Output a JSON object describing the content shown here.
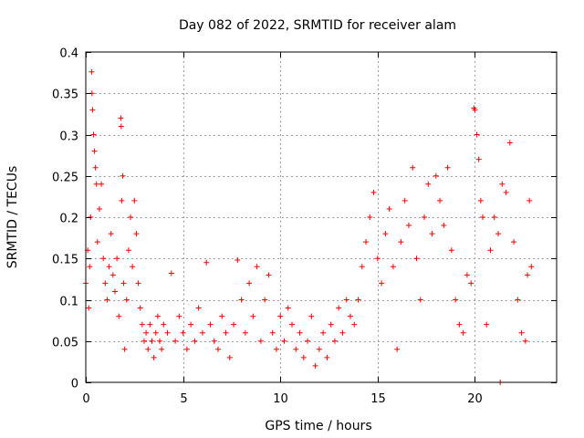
{
  "chart_data": {
    "type": "scatter",
    "title": "Day 082 of 2022, SRMTID for receiver alam",
    "xlabel": "GPS time / hours",
    "ylabel": "SRMTID / TECUs",
    "xlim": [
      0,
      24.2
    ],
    "ylim": [
      0,
      0.4
    ],
    "xticks": [
      0,
      5,
      10,
      15,
      20
    ],
    "xtick_labels": [
      "0",
      "5",
      "10",
      "15",
      "20"
    ],
    "yticks": [
      0,
      0.05,
      0.1,
      0.15,
      0.2,
      0.25,
      0.3,
      0.35,
      0.4
    ],
    "ytick_labels": [
      "0",
      "0.05",
      "0.1",
      "0.15",
      "0.2",
      "0.25",
      "0.3",
      "0.35",
      "0.4"
    ],
    "grid": true,
    "marker": "plus",
    "color": "#ff0000",
    "series": [
      {
        "name": "SRMTID",
        "points": [
          [
            0.0,
            0.12
          ],
          [
            0.1,
            0.16
          ],
          [
            0.15,
            0.09
          ],
          [
            0.2,
            0.14
          ],
          [
            0.25,
            0.2
          ],
          [
            0.3,
            0.376
          ],
          [
            0.32,
            0.35
          ],
          [
            0.35,
            0.33
          ],
          [
            0.4,
            0.3
          ],
          [
            0.45,
            0.28
          ],
          [
            0.5,
            0.26
          ],
          [
            0.55,
            0.24
          ],
          [
            0.6,
            0.17
          ],
          [
            0.7,
            0.21
          ],
          [
            0.8,
            0.24
          ],
          [
            0.9,
            0.15
          ],
          [
            1.0,
            0.12
          ],
          [
            1.1,
            0.1
          ],
          [
            1.2,
            0.14
          ],
          [
            1.3,
            0.18
          ],
          [
            1.4,
            0.13
          ],
          [
            1.5,
            0.11
          ],
          [
            1.6,
            0.15
          ],
          [
            1.7,
            0.08
          ],
          [
            1.8,
            0.32
          ],
          [
            1.82,
            0.31
          ],
          [
            1.85,
            0.22
          ],
          [
            1.9,
            0.25
          ],
          [
            1.95,
            0.12
          ],
          [
            2.0,
            0.04
          ],
          [
            2.1,
            0.1
          ],
          [
            2.2,
            0.16
          ],
          [
            2.3,
            0.2
          ],
          [
            2.4,
            0.14
          ],
          [
            2.5,
            0.22
          ],
          [
            2.6,
            0.18
          ],
          [
            2.7,
            0.12
          ],
          [
            2.8,
            0.09
          ],
          [
            2.9,
            0.07
          ],
          [
            3.0,
            0.05
          ],
          [
            3.1,
            0.06
          ],
          [
            3.2,
            0.04
          ],
          [
            3.3,
            0.07
          ],
          [
            3.4,
            0.05
          ],
          [
            3.5,
            0.03
          ],
          [
            3.6,
            0.06
          ],
          [
            3.7,
            0.08
          ],
          [
            3.8,
            0.05
          ],
          [
            3.9,
            0.04
          ],
          [
            4.0,
            0.07
          ],
          [
            4.2,
            0.06
          ],
          [
            4.4,
            0.132
          ],
          [
            4.6,
            0.05
          ],
          [
            4.8,
            0.08
          ],
          [
            5.0,
            0.06
          ],
          [
            5.2,
            0.04
          ],
          [
            5.4,
            0.07
          ],
          [
            5.6,
            0.05
          ],
          [
            5.8,
            0.09
          ],
          [
            6.0,
            0.06
          ],
          [
            6.2,
            0.145
          ],
          [
            6.4,
            0.07
          ],
          [
            6.6,
            0.05
          ],
          [
            6.8,
            0.04
          ],
          [
            7.0,
            0.08
          ],
          [
            7.2,
            0.06
          ],
          [
            7.4,
            0.03
          ],
          [
            7.6,
            0.07
          ],
          [
            7.8,
            0.148
          ],
          [
            8.0,
            0.1
          ],
          [
            8.2,
            0.06
          ],
          [
            8.4,
            0.12
          ],
          [
            8.6,
            0.08
          ],
          [
            8.8,
            0.14
          ],
          [
            9.0,
            0.05
          ],
          [
            9.2,
            0.1
          ],
          [
            9.4,
            0.13
          ],
          [
            9.6,
            0.06
          ],
          [
            9.8,
            0.04
          ],
          [
            10.0,
            0.08
          ],
          [
            10.2,
            0.05
          ],
          [
            10.4,
            0.09
          ],
          [
            10.6,
            0.07
          ],
          [
            10.8,
            0.04
          ],
          [
            11.0,
            0.06
          ],
          [
            11.2,
            0.03
          ],
          [
            11.4,
            0.05
          ],
          [
            11.6,
            0.08
          ],
          [
            11.8,
            0.02
          ],
          [
            12.0,
            0.04
          ],
          [
            12.2,
            0.06
          ],
          [
            12.4,
            0.03
          ],
          [
            12.6,
            0.07
          ],
          [
            12.8,
            0.05
          ],
          [
            13.0,
            0.09
          ],
          [
            13.2,
            0.06
          ],
          [
            13.4,
            0.1
          ],
          [
            13.6,
            0.08
          ],
          [
            13.8,
            0.07
          ],
          [
            14.0,
            0.1
          ],
          [
            14.2,
            0.14
          ],
          [
            14.4,
            0.17
          ],
          [
            14.6,
            0.2
          ],
          [
            14.8,
            0.23
          ],
          [
            15.0,
            0.15
          ],
          [
            15.2,
            0.12
          ],
          [
            15.4,
            0.18
          ],
          [
            15.6,
            0.21
          ],
          [
            15.8,
            0.14
          ],
          [
            16.0,
            0.04
          ],
          [
            16.2,
            0.17
          ],
          [
            16.4,
            0.22
          ],
          [
            16.6,
            0.19
          ],
          [
            16.8,
            0.26
          ],
          [
            17.0,
            0.15
          ],
          [
            17.2,
            0.1
          ],
          [
            17.4,
            0.2
          ],
          [
            17.6,
            0.24
          ],
          [
            17.8,
            0.18
          ],
          [
            18.0,
            0.25
          ],
          [
            18.2,
            0.22
          ],
          [
            18.4,
            0.19
          ],
          [
            18.6,
            0.26
          ],
          [
            18.8,
            0.16
          ],
          [
            19.0,
            0.1
          ],
          [
            19.2,
            0.07
          ],
          [
            19.4,
            0.06
          ],
          [
            19.6,
            0.13
          ],
          [
            19.8,
            0.12
          ],
          [
            19.95,
            0.332
          ],
          [
            20.0,
            0.33
          ],
          [
            20.1,
            0.3
          ],
          [
            20.2,
            0.27
          ],
          [
            20.3,
            0.22
          ],
          [
            20.4,
            0.2
          ],
          [
            20.6,
            0.07
          ],
          [
            20.8,
            0.16
          ],
          [
            21.0,
            0.2
          ],
          [
            21.2,
            0.18
          ],
          [
            21.4,
            0.24
          ],
          [
            21.6,
            0.23
          ],
          [
            21.8,
            0.29
          ],
          [
            22.0,
            0.17
          ],
          [
            22.2,
            0.1
          ],
          [
            22.4,
            0.06
          ],
          [
            22.6,
            0.05
          ],
          [
            22.7,
            0.13
          ],
          [
            22.8,
            0.22
          ],
          [
            22.9,
            0.14
          ],
          [
            21.3,
            0.0
          ]
        ]
      }
    ]
  }
}
